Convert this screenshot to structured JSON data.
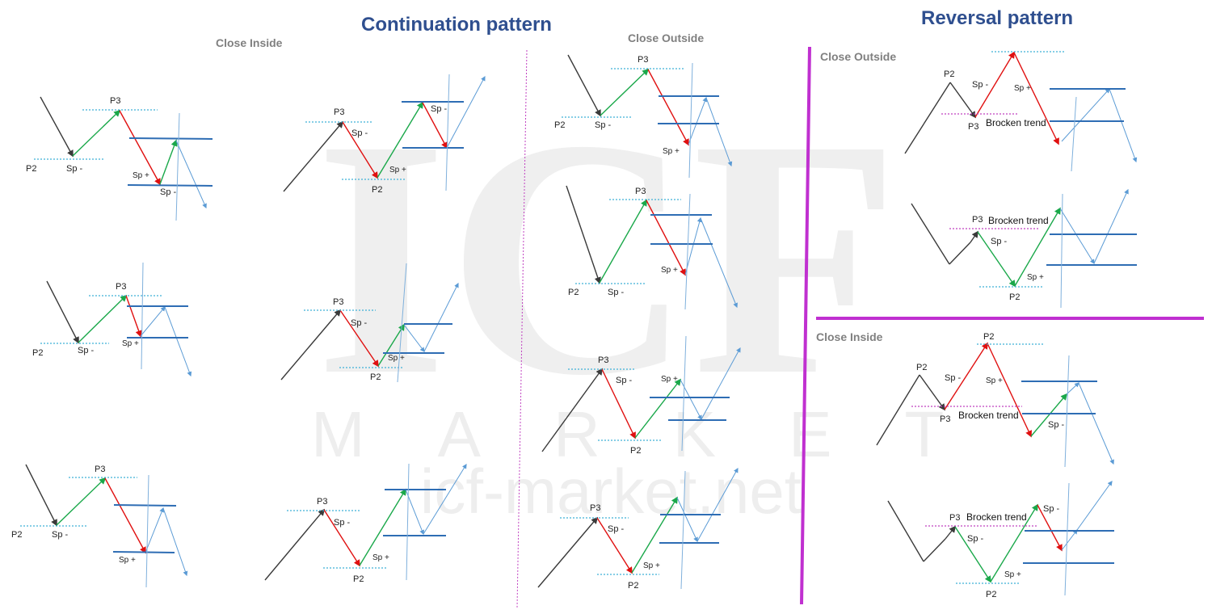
{
  "titles": {
    "continuation": "Continuation pattern",
    "reversal": "Reversal pattern"
  },
  "subtitles": {
    "close_inside_left": "Close Inside",
    "close_outside_mid": "Close Outside",
    "close_outside_right": "Close Outside",
    "close_inside_right": "Close Inside"
  },
  "labels": {
    "p2": "P2",
    "p3": "P3",
    "sp_minus": "Sp -",
    "sp_plus": "Sp +",
    "broken_trend": "Brocken trend"
  },
  "watermark": {
    "logo": "ICF",
    "market": "MARKET",
    "url": "icf-market.net"
  },
  "colors": {
    "title": "#2f4f8f",
    "subtitle": "#808080",
    "arrow_dark": "#3a3a3a",
    "arrow_green": "#1aa84a",
    "arrow_red": "#e01010",
    "arrow_light_blue": "#5b9bd5",
    "level_line": "#2e6db4",
    "dotted_cyan": "#3fb0d8",
    "dotted_magenta": "#c040c0",
    "divider_magenta": "#c030d0"
  }
}
